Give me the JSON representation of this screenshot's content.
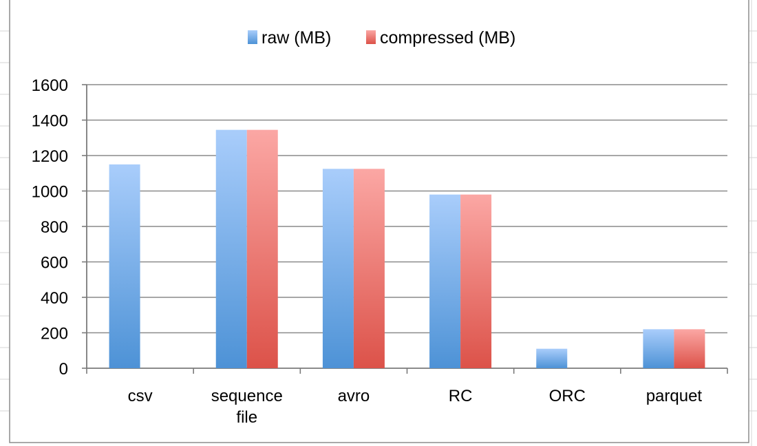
{
  "chart_data": {
    "type": "bar",
    "categories": [
      "csv",
      "sequence file",
      "avro",
      "RC",
      "ORC",
      "parquet"
    ],
    "category_lines": [
      [
        "csv"
      ],
      [
        "sequence",
        "file"
      ],
      [
        "avro"
      ],
      [
        "RC"
      ],
      [
        "ORC"
      ],
      [
        "parquet"
      ]
    ],
    "series": [
      {
        "name": "raw (MB)",
        "values": [
          1150,
          1345,
          1125,
          980,
          110,
          220
        ],
        "color_top": "#a9cdfb",
        "color_bottom": "#4d92d6"
      },
      {
        "name": "compressed (MB)",
        "values": [
          null,
          1345,
          1125,
          980,
          null,
          220
        ],
        "color_top": "#fba7a4",
        "color_bottom": "#dc5249"
      }
    ],
    "y_ticks": [
      0,
      200,
      400,
      600,
      800,
      1000,
      1200,
      1400,
      1600
    ],
    "ylim": [
      0,
      1600
    ],
    "grid": true,
    "legend_position": "top-center",
    "title": "",
    "xlabel": "",
    "ylabel": ""
  }
}
